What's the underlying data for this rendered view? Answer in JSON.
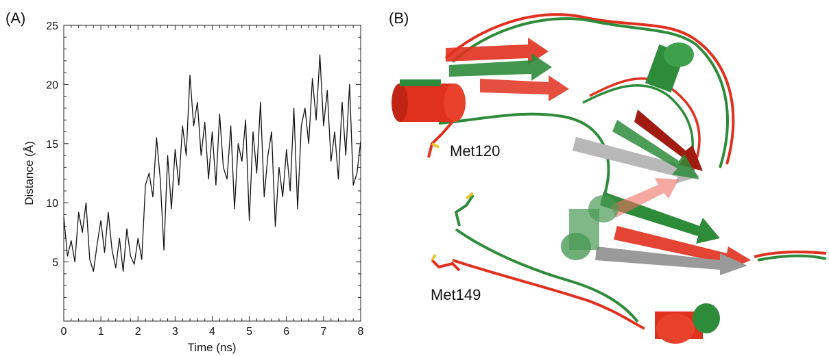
{
  "panels": {
    "a_label": "(A)",
    "b_label": "(B)"
  },
  "chart_data": {
    "type": "line",
    "xlabel": "Time (ns)",
    "ylabel": "Distance (Å)",
    "xlim": [
      0,
      8
    ],
    "ylim": [
      0,
      25
    ],
    "xticks": [
      0,
      1,
      2,
      3,
      4,
      5,
      6,
      7,
      8
    ],
    "yticks": [
      5,
      10,
      15,
      20,
      25
    ],
    "grid": false,
    "series": [
      {
        "color": "#111111",
        "x": [
          0.0,
          0.1,
          0.2,
          0.3,
          0.4,
          0.5,
          0.6,
          0.7,
          0.8,
          0.9,
          1.0,
          1.1,
          1.2,
          1.3,
          1.4,
          1.5,
          1.6,
          1.7,
          1.8,
          1.9,
          2.0,
          2.1,
          2.2,
          2.3,
          2.4,
          2.5,
          2.6,
          2.7,
          2.8,
          2.9,
          3.0,
          3.1,
          3.2,
          3.3,
          3.4,
          3.5,
          3.6,
          3.7,
          3.8,
          3.9,
          4.0,
          4.1,
          4.2,
          4.3,
          4.4,
          4.5,
          4.6,
          4.7,
          4.8,
          4.9,
          5.0,
          5.1,
          5.2,
          5.3,
          5.4,
          5.5,
          5.6,
          5.7,
          5.8,
          5.9,
          6.0,
          6.1,
          6.2,
          6.3,
          6.4,
          6.5,
          6.6,
          6.7,
          6.8,
          6.9,
          7.0,
          7.1,
          7.2,
          7.3,
          7.4,
          7.5,
          7.6,
          7.7,
          7.8,
          7.9,
          8.0
        ],
        "values": [
          8.8,
          5.5,
          6.8,
          5.0,
          9.2,
          7.5,
          10.0,
          5.2,
          4.2,
          6.5,
          8.5,
          5.8,
          9.2,
          6.0,
          4.5,
          7.0,
          4.2,
          7.8,
          5.5,
          4.8,
          7.0,
          5.2,
          11.5,
          12.5,
          10.5,
          15.5,
          12.0,
          6.0,
          14.0,
          9.5,
          14.5,
          11.5,
          16.5,
          14.0,
          20.8,
          16.5,
          18.5,
          14.0,
          16.8,
          12.0,
          16.0,
          11.5,
          17.5,
          13.0,
          12.0,
          16.5,
          9.5,
          15.0,
          13.5,
          17.0,
          8.5,
          16.0,
          12.5,
          18.5,
          10.5,
          14.0,
          16.0,
          8.0,
          13.0,
          10.5,
          14.5,
          11.0,
          18.0,
          9.5,
          16.5,
          18.0,
          15.0,
          20.5,
          17.0,
          22.5,
          16.5,
          19.5,
          13.5,
          16.0,
          12.0,
          18.5,
          14.0,
          20.0,
          11.5,
          12.5,
          15.2
        ]
      }
    ]
  },
  "structure": {
    "labels": [
      "Met120",
      "Met149"
    ],
    "colors": {
      "red": "#e0301e",
      "green": "#2e8b3a",
      "dark_green": "#1f6b2a",
      "grey": "#b8b8b8"
    }
  }
}
